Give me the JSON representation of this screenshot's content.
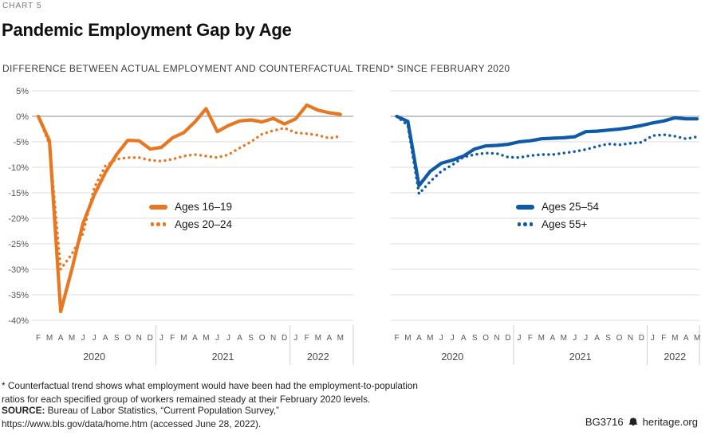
{
  "header": {
    "kicker": "CHART 5",
    "title": "Pandemic Employment Gap by Age",
    "subtitle": "DIFFERENCE BETWEEN ACTUAL EMPLOYMENT AND COUNTERFACTUAL TREND* SINCE FEBRUARY 2020"
  },
  "chart_data": [
    {
      "type": "line",
      "color": "#e87722",
      "months": [
        "F",
        "M",
        "A",
        "M",
        "J",
        "J",
        "A",
        "S",
        "O",
        "N",
        "D",
        "J",
        "F",
        "M",
        "A",
        "M",
        "J",
        "J",
        "A",
        "S",
        "O",
        "N",
        "D",
        "J",
        "F",
        "M",
        "A",
        "M"
      ],
      "years": [
        {
          "label": "2020",
          "from": 0,
          "to": 10
        },
        {
          "label": "2021",
          "from": 11,
          "to": 22
        },
        {
          "label": "2022",
          "from": 23,
          "to": 27
        }
      ],
      "ylim": [
        -40,
        5
      ],
      "grid": true,
      "show_ytick_labels": true,
      "yticks": {
        "values": [
          5,
          0,
          -5,
          -10,
          -15,
          -20,
          -25,
          -30,
          -35,
          -40
        ],
        "labels": [
          "5%",
          "0%",
          "-5%",
          "-10%",
          "-15%",
          "-20%",
          "-25%",
          "-30%",
          "-35%",
          "-40%"
        ]
      },
      "series": [
        {
          "name": "Ages 16–19",
          "style": "solid",
          "values": [
            0,
            -4.8,
            -38.3,
            -30.0,
            -21.0,
            -15.4,
            -11.0,
            -7.5,
            -4.7,
            -4.8,
            -6.4,
            -6.1,
            -4.2,
            -3.2,
            -1.1,
            1.5,
            -3.0,
            -1.8,
            -0.9,
            -0.7,
            -1.1,
            -0.4,
            -1.5,
            -0.5,
            2.2,
            1.2,
            0.7,
            0.4
          ]
        },
        {
          "name": "Ages 20–24",
          "style": "dotted",
          "values": [
            0,
            -5.5,
            -30.0,
            -27.0,
            -23.0,
            -14.0,
            -9.7,
            -8.4,
            -8.1,
            -8.1,
            -8.6,
            -8.8,
            -8.4,
            -7.8,
            -7.5,
            -7.8,
            -8.1,
            -7.5,
            -6.2,
            -5.0,
            -3.5,
            -2.8,
            -2.3,
            -3.2,
            -3.4,
            -3.7,
            -4.3,
            -3.9
          ]
        }
      ]
    },
    {
      "type": "line",
      "color": "#0e5aa6",
      "months": [
        "F",
        "M",
        "A",
        "M",
        "J",
        "J",
        "A",
        "S",
        "O",
        "N",
        "D",
        "J",
        "F",
        "M",
        "A",
        "M",
        "J",
        "J",
        "A",
        "S",
        "O",
        "N",
        "D",
        "J",
        "F",
        "M",
        "A",
        "M"
      ],
      "years": [
        {
          "label": "2020",
          "from": 0,
          "to": 10
        },
        {
          "label": "2021",
          "from": 11,
          "to": 22
        },
        {
          "label": "2022",
          "from": 23,
          "to": 27
        }
      ],
      "ylim": [
        -40,
        5
      ],
      "grid": true,
      "show_ytick_labels": false,
      "yticks": {
        "values": [
          5,
          0,
          -5,
          -10,
          -15,
          -20,
          -25,
          -30,
          -35,
          -40
        ],
        "labels": [
          "5%",
          "0%",
          "-5%",
          "-10%",
          "-15%",
          "-20%",
          "-25%",
          "-30%",
          "-35%",
          "-40%"
        ]
      },
      "series": [
        {
          "name": "Ages 25–54",
          "style": "solid",
          "values": [
            0,
            -1.0,
            -13.6,
            -10.8,
            -9.2,
            -8.6,
            -7.8,
            -6.4,
            -5.8,
            -5.7,
            -5.5,
            -5.0,
            -4.8,
            -4.4,
            -4.3,
            -4.2,
            -4.0,
            -3.0,
            -2.9,
            -2.7,
            -2.5,
            -2.2,
            -1.8,
            -1.3,
            -0.9,
            -0.3,
            -0.5,
            -0.5
          ]
        },
        {
          "name": "Ages 55+",
          "style": "dotted",
          "values": [
            0,
            -1.8,
            -15.2,
            -12.8,
            -10.8,
            -9.5,
            -8.0,
            -7.5,
            -7.2,
            -7.3,
            -8.0,
            -8.1,
            -7.7,
            -7.5,
            -7.5,
            -7.2,
            -6.9,
            -6.5,
            -5.9,
            -5.4,
            -5.6,
            -5.3,
            -5.1,
            -3.8,
            -3.6,
            -3.9,
            -4.4,
            -4.0
          ]
        }
      ]
    }
  ],
  "footer": {
    "note_line1": "* Counterfactual trend shows what employment would have been had the employment-to-population",
    "note_line2": "ratios for each specified group of workers remained steady at their February 2020 levels.",
    "source_label": "SOURCE:",
    "source_text": " Bureau of Labor Statistics, “Current Population Survey,”",
    "url_line": "https://www.bls.gov/data/home.htm (accessed June 28, 2022).",
    "brand_id": "BG3716",
    "brand_site": "heritage.org"
  }
}
